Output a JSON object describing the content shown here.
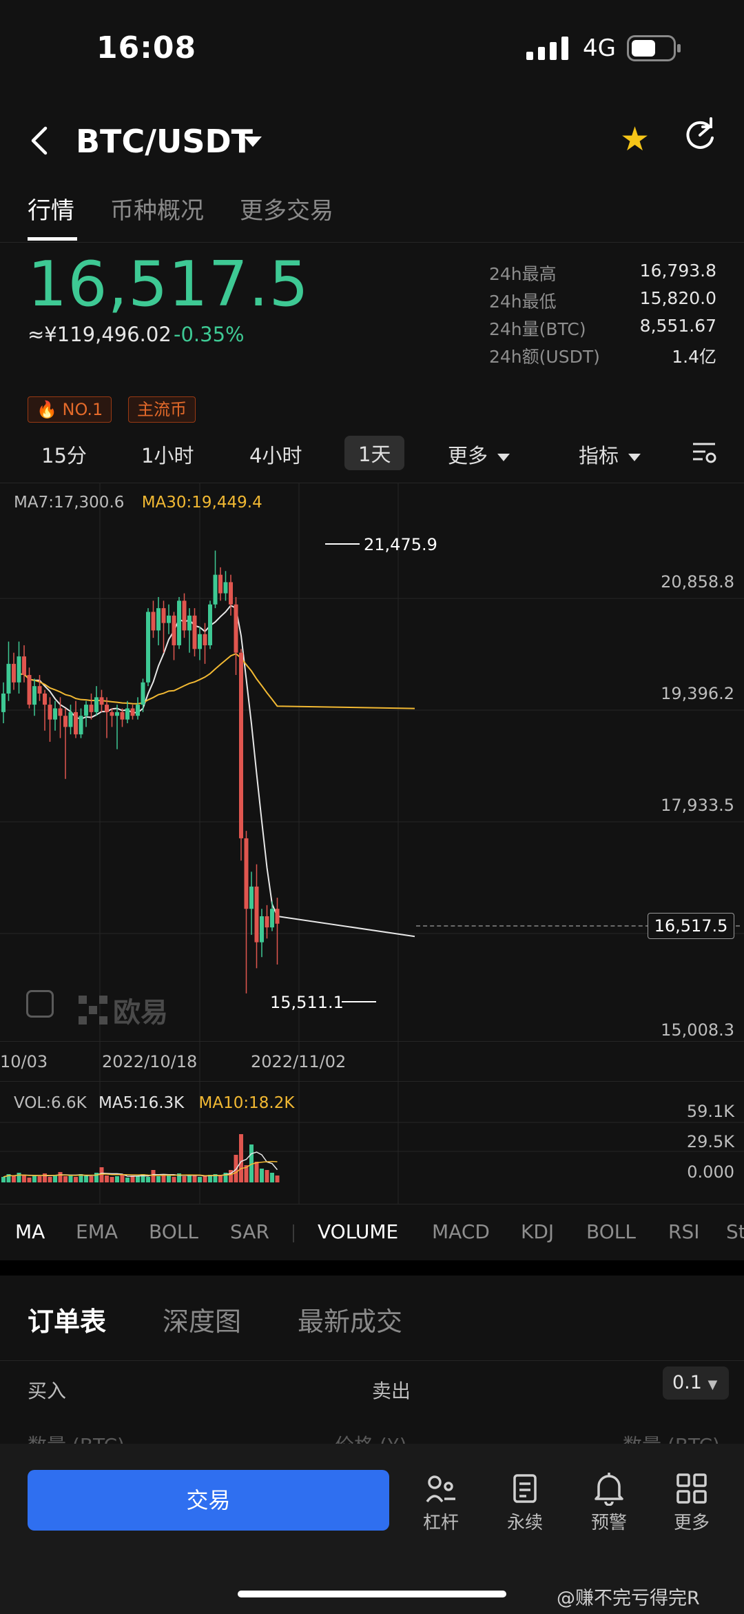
{
  "status": {
    "time": "16:08",
    "network": "4G"
  },
  "header": {
    "pair": "BTC/USDT"
  },
  "tabs": [
    "行情",
    "币种概况",
    "更多交易"
  ],
  "ticker": {
    "last_price": "16,517.5",
    "cny": "≈¥119,496.02",
    "change": "-0.35%",
    "stats": [
      {
        "k": "24h最高",
        "v": "16,793.8"
      },
      {
        "k": "24h最低",
        "v": "15,820.0"
      },
      {
        "k": "24h量(BTC)",
        "v": "8,551.67"
      },
      {
        "k": "24h额(USDT)",
        "v": "1.4亿"
      }
    ],
    "tags": [
      "NO.1",
      "主流币"
    ]
  },
  "intervals": {
    "items": [
      "15分",
      "1小时",
      "4小时",
      "1天"
    ],
    "active": "1天",
    "more": "更多",
    "indicator": "指标"
  },
  "chart": {
    "ma7_label": "MA7:17,300.6",
    "ma30_label": "MA30:19,449.4",
    "high_marker": "21,475.9",
    "low_marker": "15,511.1",
    "price_axis": [
      "20,858.8",
      "19,396.2",
      "17,933.5",
      "15,008.3"
    ],
    "current_price_tag": "16,517.5",
    "dates": [
      "10/03",
      "2022/10/18",
      "2022/11/02"
    ],
    "logo_text": "欧易",
    "colors": {
      "up": "#3ec994",
      "down": "#e0564f",
      "ma7": "#e8e8e8",
      "ma30": "#f2b933"
    }
  },
  "volume": {
    "vol_label": "VOL:6.6K",
    "ma5_label": "MA5:16.3K",
    "ma10_label": "MA10:18.2K",
    "axis": [
      "59.1K",
      "29.5K",
      "0.000"
    ]
  },
  "indicators": [
    "MA",
    "EMA",
    "BOLL",
    "SAR",
    "VOLUME",
    "MACD",
    "KDJ",
    "BOLL",
    "RSI",
    "St"
  ],
  "orderbook": {
    "tabs": [
      "订单表",
      "深度图",
      "最新成交"
    ],
    "buy": "买入",
    "sell": "卖出",
    "qty": "0.1",
    "col_qty_left": "数量 (BTC)",
    "col_price": "价格 (¥)",
    "col_qty_right": "数量 (BTC)"
  },
  "bottom": {
    "trade": "交易",
    "nav": [
      {
        "label": "杠杆",
        "icon": "leverage-icon"
      },
      {
        "label": "永续",
        "icon": "perpetual-icon"
      },
      {
        "label": "预警",
        "icon": "bell-icon"
      },
      {
        "label": "更多",
        "icon": "grid-icon"
      }
    ]
  },
  "watermark": "@赚不完亏得完R"
}
